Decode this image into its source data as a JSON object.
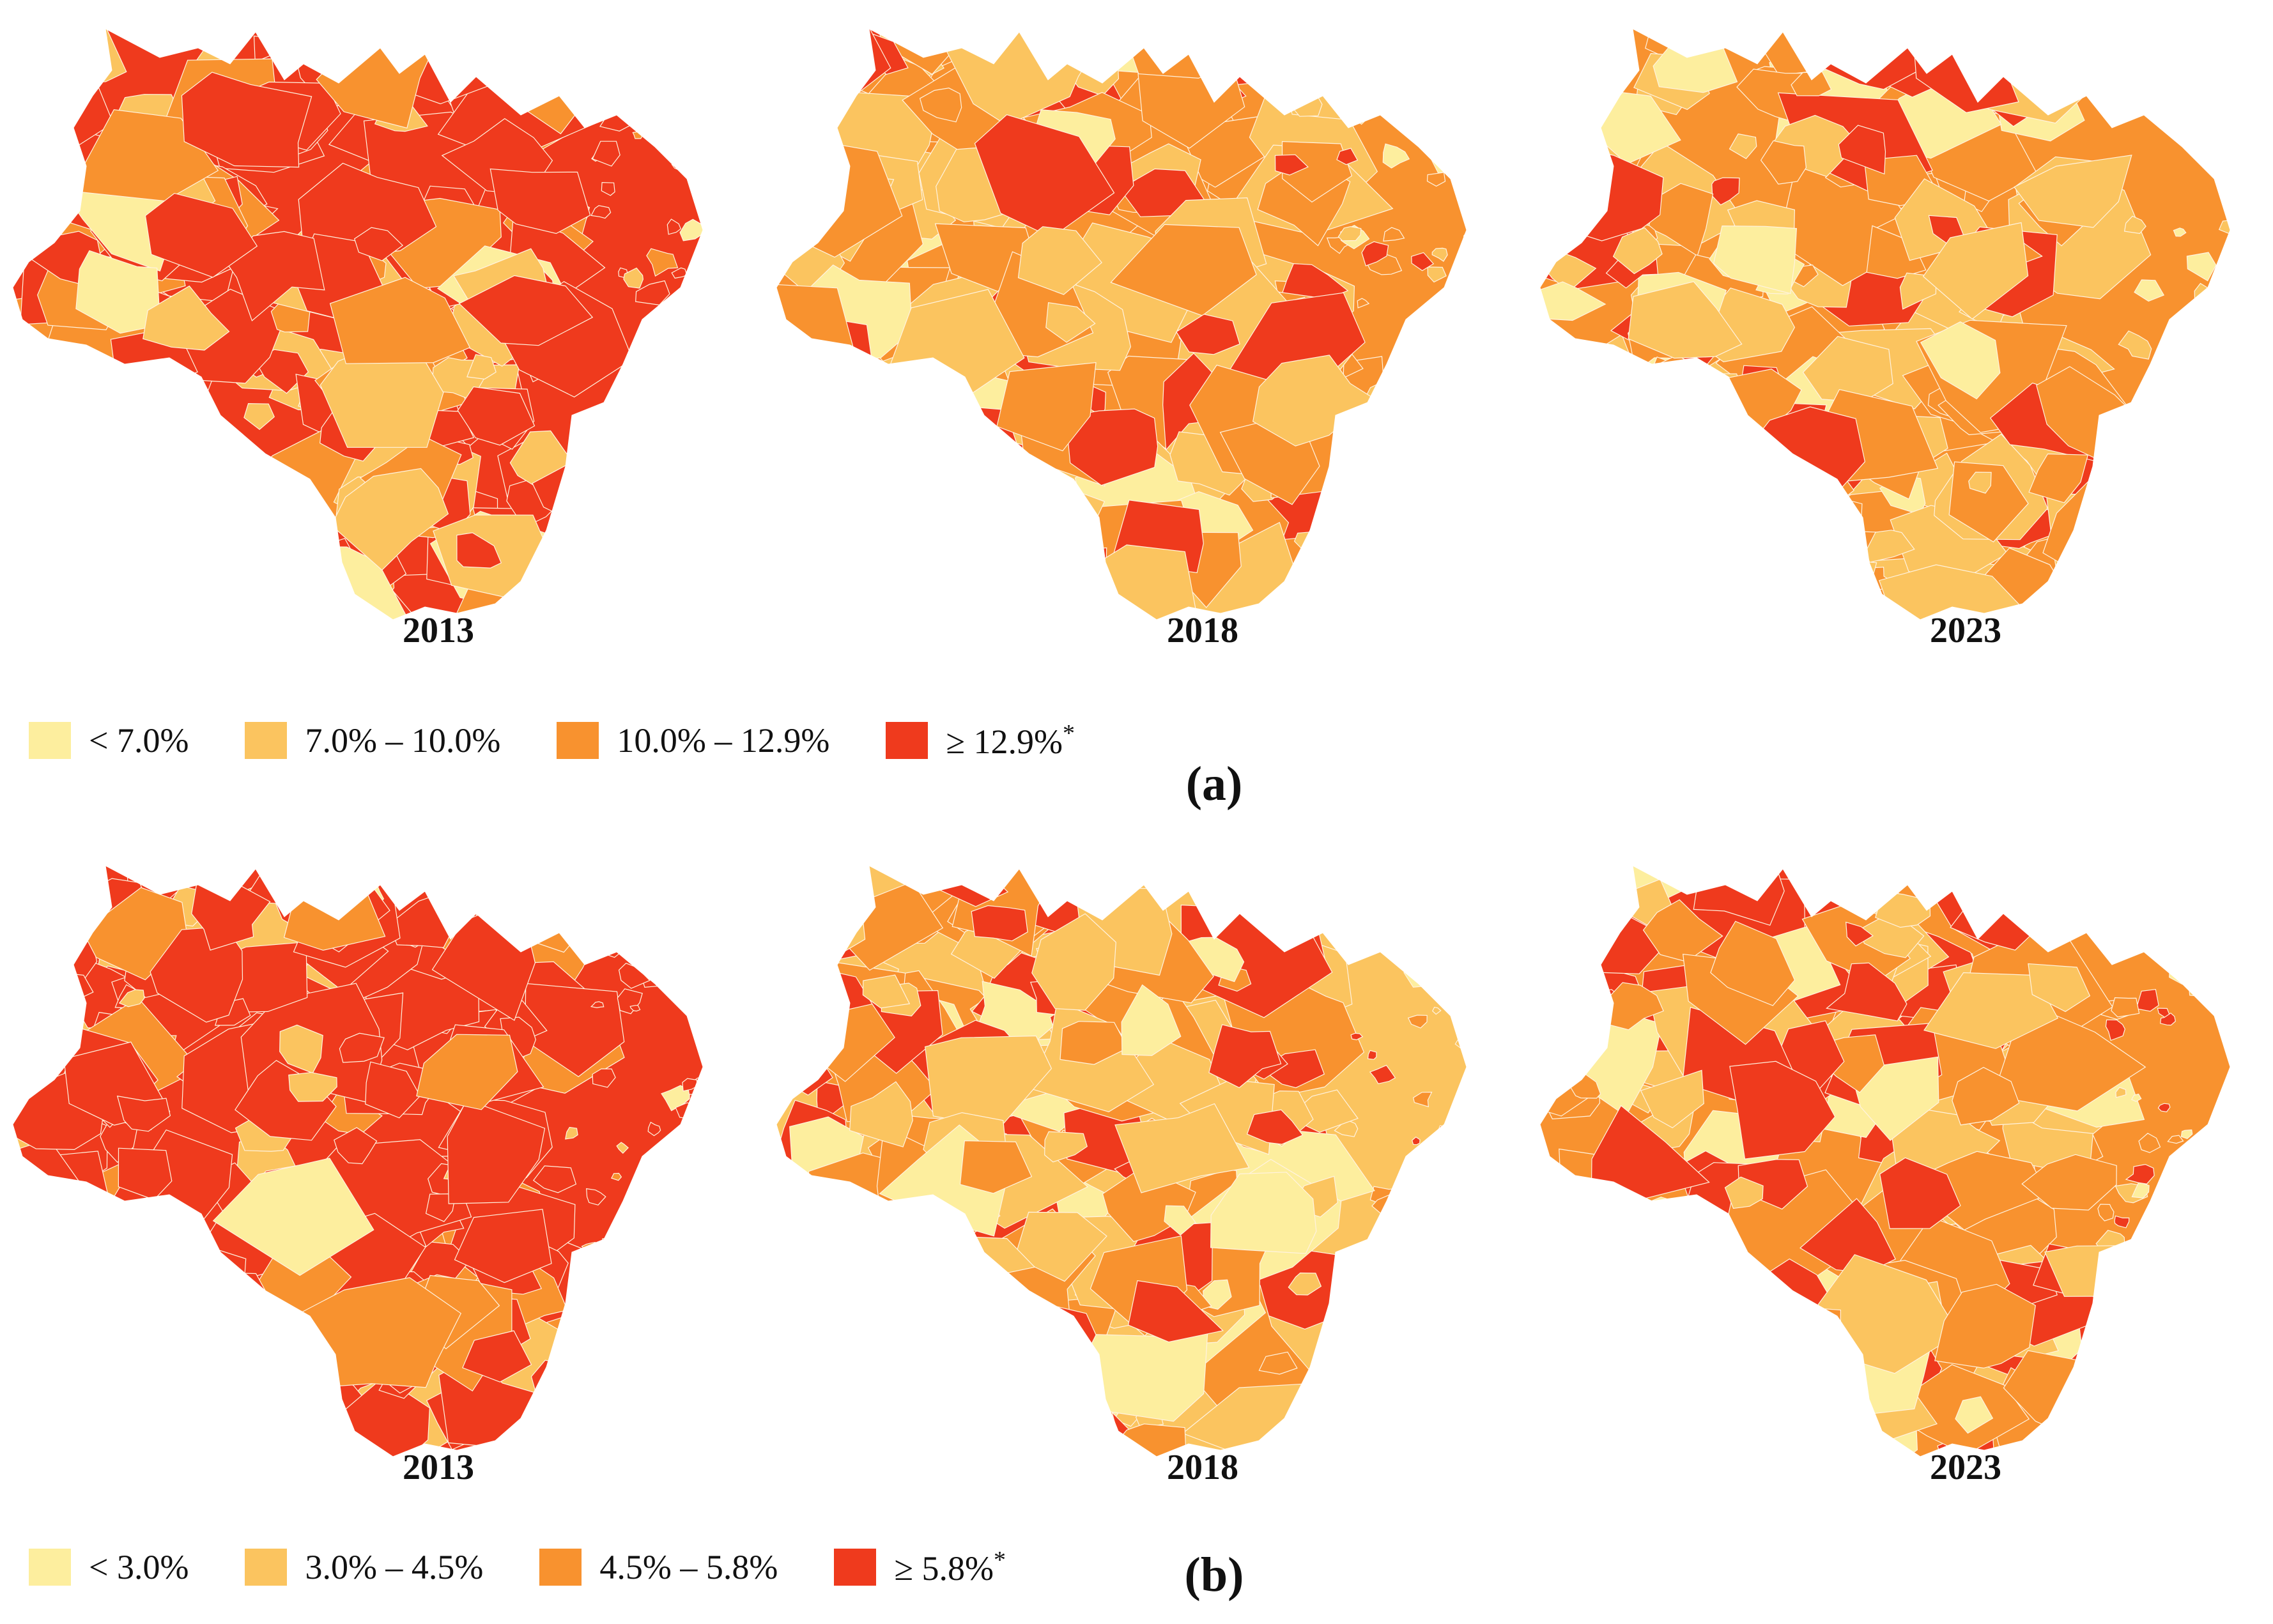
{
  "legend_colors": [
    "#fdee9e",
    "#fbc45f",
    "#f8922f",
    "#ef3a1d"
  ],
  "panels": [
    {
      "label": "(a)",
      "years": [
        "2013",
        "2018",
        "2023"
      ],
      "legend": [
        {
          "label": "< 7.0%",
          "color": "#fdee9e"
        },
        {
          "label": "7.0% – 10.0%",
          "color": "#fbc45f"
        },
        {
          "label": "10.0% – 12.9%",
          "color": "#f8922f"
        },
        {
          "label": "≥ 12.9%",
          "marker": "*",
          "color": "#ef3a1d"
        }
      ],
      "class_mix": [
        {
          "year": "2013",
          "shares": [
            0.05,
            0.18,
            0.17,
            0.6
          ]
        },
        {
          "year": "2018",
          "shares": [
            0.08,
            0.3,
            0.37,
            0.25
          ]
        },
        {
          "year": "2023",
          "shares": [
            0.08,
            0.32,
            0.42,
            0.18
          ]
        }
      ]
    },
    {
      "label": "(b)",
      "years": [
        "2013",
        "2018",
        "2023"
      ],
      "legend": [
        {
          "label": "< 3.0%",
          "color": "#fdee9e"
        },
        {
          "label": "3.0% – 4.5%",
          "color": "#fbc45f"
        },
        {
          "label": "4.5% – 5.8%",
          "color": "#f8922f"
        },
        {
          "label": "≥ 5.8%",
          "marker": "*",
          "color": "#ef3a1d"
        }
      ],
      "class_mix": [
        {
          "year": "2013",
          "shares": [
            0.04,
            0.12,
            0.14,
            0.7
          ]
        },
        {
          "year": "2018",
          "shares": [
            0.12,
            0.3,
            0.3,
            0.28
          ]
        },
        {
          "year": "2023",
          "shares": [
            0.14,
            0.28,
            0.3,
            0.28
          ]
        }
      ]
    }
  ]
}
